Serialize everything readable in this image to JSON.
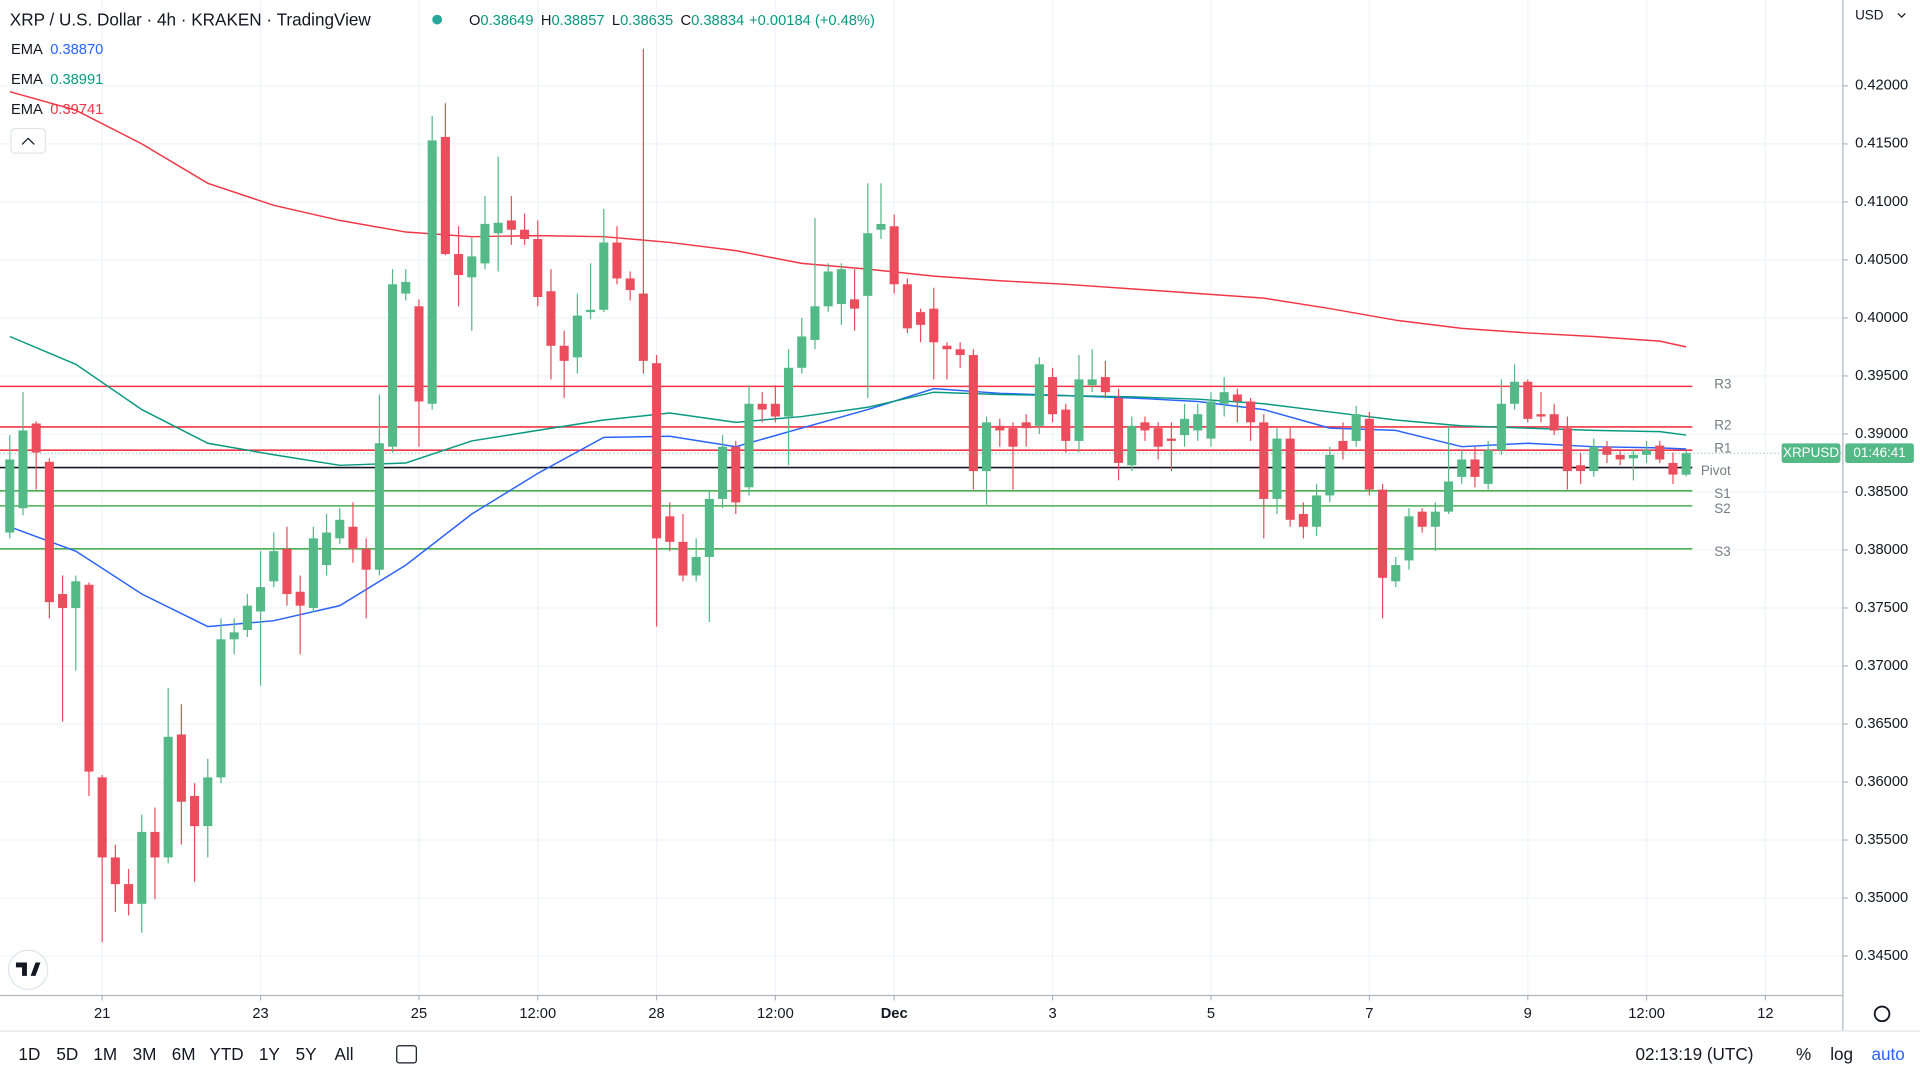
{
  "header": {
    "title": "XRP / U.S. Dollar · 4h · KRAKEN · TradingView",
    "ohlc": [
      {
        "k": "O",
        "v": "0.38649"
      },
      {
        "k": "H",
        "v": "0.38857"
      },
      {
        "k": "L",
        "v": "0.38635"
      },
      {
        "k": "C",
        "v": "0.38834"
      }
    ],
    "change": "+0.00184 (+0.48%)",
    "currency": "USD"
  },
  "chart_data": {
    "type": "candlestick",
    "up_color": "#53b987",
    "down_color": "#eb4d5c",
    "ohlc": [
      [
        0.3815,
        0.3899,
        0.381,
        0.3878
      ],
      [
        0.3836,
        0.3936,
        0.383,
        0.3903
      ],
      [
        0.3909,
        0.3911,
        0.3852,
        0.3884
      ],
      [
        0.3876,
        0.3879,
        0.3741,
        0.3755
      ],
      [
        0.3762,
        0.3778,
        0.3652,
        0.375
      ],
      [
        0.375,
        0.3778,
        0.3696,
        0.3773
      ],
      [
        0.377,
        0.3772,
        0.3588,
        0.3609
      ],
      [
        0.3604,
        0.3606,
        0.3462,
        0.3535
      ],
      [
        0.3535,
        0.3546,
        0.3488,
        0.3512
      ],
      [
        0.3512,
        0.3525,
        0.3485,
        0.3495
      ],
      [
        0.3495,
        0.3572,
        0.347,
        0.3557
      ],
      [
        0.3557,
        0.3578,
        0.3499,
        0.3535
      ],
      [
        0.3535,
        0.3681,
        0.353,
        0.3639
      ],
      [
        0.3641,
        0.3667,
        0.3546,
        0.3583
      ],
      [
        0.3588,
        0.3599,
        0.3514,
        0.3562
      ],
      [
        0.3562,
        0.362,
        0.3535,
        0.3604
      ],
      [
        0.3604,
        0.3741,
        0.3599,
        0.3723
      ],
      [
        0.3723,
        0.3741,
        0.371,
        0.3729
      ],
      [
        0.3731,
        0.3762,
        0.3725,
        0.3752
      ],
      [
        0.3747,
        0.3799,
        0.3683,
        0.3768
      ],
      [
        0.3773,
        0.3815,
        0.3768,
        0.3799
      ],
      [
        0.3801,
        0.382,
        0.3752,
        0.3762
      ],
      [
        0.3764,
        0.3778,
        0.371,
        0.3752
      ],
      [
        0.375,
        0.382,
        0.3746,
        0.381
      ],
      [
        0.3787,
        0.3831,
        0.3778,
        0.3815
      ],
      [
        0.381,
        0.3836,
        0.3805,
        0.3826
      ],
      [
        0.382,
        0.3841,
        0.3789,
        0.3801
      ],
      [
        0.3801,
        0.381,
        0.3741,
        0.3783
      ],
      [
        0.3783,
        0.3934,
        0.3778,
        0.3892
      ],
      [
        0.3889,
        0.4042,
        0.3884,
        0.4029
      ],
      [
        0.4021,
        0.4042,
        0.4015,
        0.4031
      ],
      [
        0.401,
        0.4016,
        0.3889,
        0.3928
      ],
      [
        0.3926,
        0.4174,
        0.3921,
        0.4153
      ],
      [
        0.4156,
        0.4185,
        0.4054,
        0.4055
      ],
      [
        0.4055,
        0.4079,
        0.401,
        0.4037
      ],
      [
        0.4035,
        0.4069,
        0.3989,
        0.4053
      ],
      [
        0.4047,
        0.4105,
        0.4042,
        0.4081
      ],
      [
        0.4073,
        0.4139,
        0.404,
        0.4082
      ],
      [
        0.4084,
        0.4105,
        0.4063,
        0.4076
      ],
      [
        0.4076,
        0.409,
        0.4063,
        0.4068
      ],
      [
        0.4068,
        0.4084,
        0.401,
        0.4018
      ],
      [
        0.4023,
        0.4042,
        0.3947,
        0.3976
      ],
      [
        0.3976,
        0.3989,
        0.3931,
        0.3963
      ],
      [
        0.3966,
        0.4021,
        0.3952,
        0.4002
      ],
      [
        0.4005,
        0.4047,
        0.3999,
        0.4007
      ],
      [
        0.4007,
        0.4094,
        0.4005,
        0.4065
      ],
      [
        0.4065,
        0.4079,
        0.4029,
        0.4034
      ],
      [
        0.4034,
        0.404,
        0.4015,
        0.4024
      ],
      [
        0.4021,
        0.4232,
        0.3952,
        0.3963
      ],
      [
        0.3961,
        0.3968,
        0.3734,
        0.381
      ],
      [
        0.3829,
        0.3841,
        0.3799,
        0.3807
      ],
      [
        0.3807,
        0.3831,
        0.3773,
        0.3778
      ],
      [
        0.3778,
        0.381,
        0.3773,
        0.3794
      ],
      [
        0.3794,
        0.3852,
        0.3738,
        0.3844
      ],
      [
        0.3844,
        0.3899,
        0.3836,
        0.3889
      ],
      [
        0.3889,
        0.3894,
        0.3831,
        0.3841
      ],
      [
        0.3854,
        0.3942,
        0.3847,
        0.3926
      ],
      [
        0.3926,
        0.3936,
        0.391,
        0.3921
      ],
      [
        0.3926,
        0.3942,
        0.391,
        0.3915
      ],
      [
        0.3915,
        0.3973,
        0.3873,
        0.3957
      ],
      [
        0.3957,
        0.4,
        0.3952,
        0.3984
      ],
      [
        0.3981,
        0.4086,
        0.3973,
        0.401
      ],
      [
        0.401,
        0.4047,
        0.4005,
        0.404
      ],
      [
        0.4012,
        0.4047,
        0.3994,
        0.4042
      ],
      [
        0.4016,
        0.4042,
        0.3989,
        0.4008
      ],
      [
        0.4019,
        0.4116,
        0.3931,
        0.4073
      ],
      [
        0.4076,
        0.4116,
        0.4068,
        0.4081
      ],
      [
        0.4079,
        0.4089,
        0.4021,
        0.4029
      ],
      [
        0.4029,
        0.4034,
        0.3987,
        0.3991
      ],
      [
        0.4005,
        0.4008,
        0.3979,
        0.3994
      ],
      [
        0.4008,
        0.4026,
        0.3947,
        0.3979
      ],
      [
        0.3976,
        0.3979,
        0.3947,
        0.3973
      ],
      [
        0.3973,
        0.3979,
        0.3957,
        0.3968
      ],
      [
        0.3968,
        0.3973,
        0.3852,
        0.3868
      ],
      [
        0.3868,
        0.3915,
        0.3839,
        0.391
      ],
      [
        0.3907,
        0.3913,
        0.3889,
        0.3903
      ],
      [
        0.3905,
        0.391,
        0.3852,
        0.3889
      ],
      [
        0.391,
        0.3917,
        0.3889,
        0.3905
      ],
      [
        0.3907,
        0.3966,
        0.39,
        0.396
      ],
      [
        0.3949,
        0.3957,
        0.391,
        0.3917
      ],
      [
        0.3921,
        0.3926,
        0.3884,
        0.3894
      ],
      [
        0.3894,
        0.3968,
        0.3884,
        0.3947
      ],
      [
        0.3942,
        0.3973,
        0.3936,
        0.3947
      ],
      [
        0.3949,
        0.3963,
        0.3931,
        0.3936
      ],
      [
        0.3931,
        0.3939,
        0.386,
        0.3875
      ],
      [
        0.3873,
        0.3915,
        0.3868,
        0.3907
      ],
      [
        0.391,
        0.3915,
        0.3894,
        0.3903
      ],
      [
        0.3905,
        0.391,
        0.3878,
        0.3889
      ],
      [
        0.3896,
        0.391,
        0.3868,
        0.3894
      ],
      [
        0.3899,
        0.3926,
        0.3889,
        0.3913
      ],
      [
        0.3903,
        0.3926,
        0.3894,
        0.3917
      ],
      [
        0.3896,
        0.3936,
        0.3889,
        0.3928
      ],
      [
        0.3926,
        0.3949,
        0.3915,
        0.3936
      ],
      [
        0.3934,
        0.3939,
        0.391,
        0.3928
      ],
      [
        0.3928,
        0.3931,
        0.3894,
        0.391
      ],
      [
        0.391,
        0.3917,
        0.381,
        0.3844
      ],
      [
        0.3844,
        0.3905,
        0.3831,
        0.3896
      ],
      [
        0.3896,
        0.3905,
        0.382,
        0.3826
      ],
      [
        0.3831,
        0.3841,
        0.381,
        0.382
      ],
      [
        0.382,
        0.3857,
        0.3812,
        0.3847
      ],
      [
        0.3847,
        0.3889,
        0.3841,
        0.3882
      ],
      [
        0.3894,
        0.391,
        0.3878,
        0.3886
      ],
      [
        0.3894,
        0.3924,
        0.3889,
        0.3917
      ],
      [
        0.3913,
        0.3919,
        0.3847,
        0.3852
      ],
      [
        0.3852,
        0.3857,
        0.3741,
        0.3776
      ],
      [
        0.3773,
        0.3794,
        0.3768,
        0.3787
      ],
      [
        0.3791,
        0.3836,
        0.3783,
        0.3829
      ],
      [
        0.3833,
        0.3836,
        0.3815,
        0.382
      ],
      [
        0.382,
        0.3841,
        0.3799,
        0.3833
      ],
      [
        0.3833,
        0.3907,
        0.3831,
        0.3859
      ],
      [
        0.3863,
        0.3886,
        0.3857,
        0.3878
      ],
      [
        0.3878,
        0.3889,
        0.3854,
        0.3863
      ],
      [
        0.3857,
        0.3894,
        0.3852,
        0.3886
      ],
      [
        0.3886,
        0.3947,
        0.3882,
        0.3926
      ],
      [
        0.3926,
        0.396,
        0.3921,
        0.3945
      ],
      [
        0.3945,
        0.3947,
        0.391,
        0.3913
      ],
      [
        0.3917,
        0.3936,
        0.391,
        0.3915
      ],
      [
        0.3917,
        0.3926,
        0.3899,
        0.3903
      ],
      [
        0.3905,
        0.3915,
        0.3852,
        0.3868
      ],
      [
        0.3873,
        0.3884,
        0.3857,
        0.3868
      ],
      [
        0.3868,
        0.3896,
        0.3863,
        0.3889
      ],
      [
        0.3889,
        0.3894,
        0.3875,
        0.3882
      ],
      [
        0.3882,
        0.3886,
        0.3873,
        0.3878
      ],
      [
        0.3879,
        0.3886,
        0.386,
        0.3882
      ],
      [
        0.3882,
        0.3894,
        0.3875,
        0.3886
      ],
      [
        0.389,
        0.3894,
        0.3875,
        0.3878
      ],
      [
        0.3875,
        0.3884,
        0.3857,
        0.3865
      ],
      [
        0.38649,
        0.38857,
        0.38635,
        0.38834
      ]
    ],
    "lines": [
      {
        "name": "EMA",
        "value_label": "0.38870",
        "color": "#2962ff",
        "x": [
          0,
          5,
          10,
          15,
          20,
          25,
          30,
          35,
          40,
          45,
          50,
          55,
          60,
          65,
          70,
          75,
          80,
          85,
          90,
          95,
          100,
          105,
          110,
          115,
          120,
          125,
          127
        ],
        "values": [
          0.382,
          0.3799,
          0.3762,
          0.3734,
          0.3739,
          0.3752,
          0.3787,
          0.3831,
          0.3866,
          0.3897,
          0.3898,
          0.3889,
          0.3905,
          0.3921,
          0.3939,
          0.3935,
          0.3933,
          0.3931,
          0.3928,
          0.3921,
          0.3905,
          0.3903,
          0.3889,
          0.3892,
          0.3889,
          0.3888,
          0.3887
        ]
      },
      {
        "name": "EMA",
        "value_label": "0.38991",
        "color": "#089981",
        "x": [
          0,
          5,
          10,
          15,
          20,
          25,
          30,
          35,
          40,
          45,
          50,
          55,
          60,
          65,
          70,
          75,
          80,
          85,
          90,
          95,
          100,
          105,
          110,
          115,
          120,
          125,
          127
        ],
        "values": [
          0.3984,
          0.396,
          0.3921,
          0.3892,
          0.3882,
          0.3873,
          0.3875,
          0.3894,
          0.3903,
          0.3912,
          0.3918,
          0.391,
          0.3915,
          0.3923,
          0.3936,
          0.3934,
          0.3933,
          0.3932,
          0.393,
          0.3926,
          0.3919,
          0.3912,
          0.3907,
          0.3905,
          0.3903,
          0.3902,
          0.3899
        ]
      },
      {
        "name": "EMA",
        "value_label": "0.39741",
        "color": "#f23645",
        "x": [
          0,
          5,
          10,
          15,
          20,
          25,
          30,
          35,
          40,
          45,
          50,
          55,
          60,
          65,
          70,
          75,
          80,
          85,
          90,
          95,
          100,
          105,
          110,
          115,
          120,
          125,
          127
        ],
        "values": [
          0.4195,
          0.4179,
          0.415,
          0.4116,
          0.4097,
          0.4084,
          0.4074,
          0.407,
          0.4071,
          0.407,
          0.4065,
          0.4058,
          0.4047,
          0.4042,
          0.4036,
          0.4032,
          0.4029,
          0.4025,
          0.4021,
          0.4017,
          0.4008,
          0.3998,
          0.3991,
          0.3987,
          0.3984,
          0.398,
          0.3975
        ]
      }
    ],
    "levels": [
      {
        "name": "R3",
        "value": 0.3941,
        "color": "#f23645"
      },
      {
        "name": "R2",
        "value": 0.3906,
        "color": "#f23645"
      },
      {
        "name": "R1",
        "value": 0.3886,
        "color": "#f23645"
      },
      {
        "name": "Pivot",
        "value": 0.3871,
        "color": "#131722"
      },
      {
        "name": "S1",
        "value": 0.3851,
        "color": "#4caf50"
      },
      {
        "name": "S2",
        "value": 0.3838,
        "color": "#4caf50"
      },
      {
        "name": "S3",
        "value": 0.3801,
        "color": "#4caf50"
      }
    ],
    "price_tag": {
      "symbol": "XRPUSD",
      "countdown": "01:46:41"
    },
    "xlim": [
      -0.74,
      138.87
    ],
    "xticks": [
      {
        "value": 7,
        "label": "21"
      },
      {
        "value": 19,
        "label": "23"
      },
      {
        "value": 31,
        "label": "25"
      },
      {
        "value": 40,
        "label": "12:00"
      },
      {
        "value": 49,
        "label": "28"
      },
      {
        "value": 58,
        "label": "12:00"
      },
      {
        "value": 67,
        "label": "Dec"
      },
      {
        "value": 79,
        "label": "3"
      },
      {
        "value": 91,
        "label": "5"
      },
      {
        "value": 103,
        "label": "7"
      },
      {
        "value": 115,
        "label": "9"
      },
      {
        "value": 124,
        "label": "12:00"
      },
      {
        "value": 133,
        "label": "12"
      }
    ],
    "ylim": [
      0.3416,
      0.4274
    ],
    "yticks": [
      {
        "value": 0.345,
        "label": "0.34500"
      },
      {
        "value": 0.35,
        "label": "0.35000"
      },
      {
        "value": 0.355,
        "label": "0.35500"
      },
      {
        "value": 0.36,
        "label": "0.36000"
      },
      {
        "value": 0.365,
        "label": "0.36500"
      },
      {
        "value": 0.37,
        "label": "0.37000"
      },
      {
        "value": 0.375,
        "label": "0.37500"
      },
      {
        "value": 0.38,
        "label": "0.38000"
      },
      {
        "value": 0.385,
        "label": "0.38500"
      },
      {
        "value": 0.39,
        "label": "0.39000"
      },
      {
        "value": 0.395,
        "label": "0.39500"
      },
      {
        "value": 0.4,
        "label": "0.40000"
      },
      {
        "value": 0.405,
        "label": "0.40500"
      },
      {
        "value": 0.41,
        "label": "0.41000"
      },
      {
        "value": 0.415,
        "label": "0.41500"
      },
      {
        "value": 0.42,
        "label": "0.42000"
      }
    ],
    "grid": true
  },
  "toolbar": {
    "ranges": [
      "1D",
      "5D",
      "1M",
      "3M",
      "6M",
      "YTD",
      "1Y",
      "5Y",
      "All"
    ],
    "clock": "02:13:19 (UTC)",
    "options": [
      "%",
      "log",
      "auto"
    ]
  }
}
